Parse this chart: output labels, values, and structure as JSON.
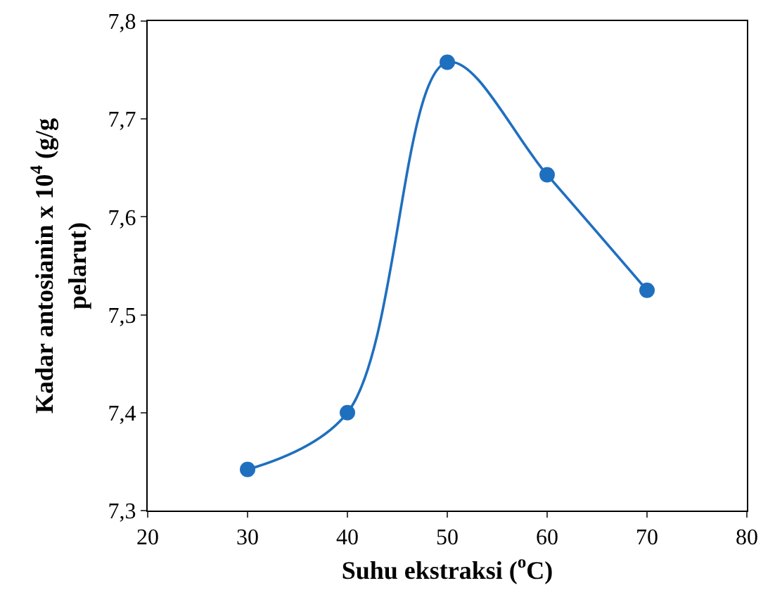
{
  "chart_data": {
    "type": "line",
    "xlabel": "Suhu ekstraksi ($^{o}$C)",
    "ylabel": "Kadar antosianin x 10$^{4}$ (g/g pelarut)",
    "x": [
      30,
      40,
      50,
      60,
      70
    ],
    "series": [
      {
        "color": "#1f6fbf",
        "values": [
          7.342,
          7.4,
          7.758,
          7.643,
          7.525
        ]
      }
    ],
    "xlim": [
      20,
      80
    ],
    "xticks": [
      20,
      30,
      40,
      50,
      60,
      70,
      80
    ],
    "ylim": [
      7.3,
      7.8
    ],
    "yticks": [
      {
        "value": 7.3,
        "label": "7,3"
      },
      {
        "value": 7.4,
        "label": "7,4"
      },
      {
        "value": 7.5,
        "label": "7,5"
      },
      {
        "value": 7.6,
        "label": "7,6"
      },
      {
        "value": 7.7,
        "label": "7,7"
      },
      {
        "value": 7.8,
        "label": "7,8"
      }
    ],
    "grid": false,
    "marker": "circle",
    "line_style": "solid"
  }
}
